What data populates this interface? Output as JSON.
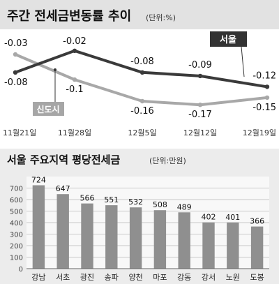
{
  "chart_data": [
    {
      "type": "line",
      "title": "주간 전세금변동률 추이",
      "unit_note": "(단위:%)",
      "categories": [
        "11월21일",
        "11월28일",
        "12월5일",
        "12월12일",
        "12월19일"
      ],
      "series": [
        {
          "name": "서울",
          "values": [
            -0.08,
            -0.02,
            -0.08,
            -0.09,
            -0.12
          ],
          "value_labels": [
            "-0.08",
            "-0.02",
            "-0.08",
            "-0.09",
            "-0.12"
          ],
          "color": "#3a3a3a"
        },
        {
          "name": "신도시",
          "values": [
            -0.03,
            -0.1,
            -0.16,
            -0.17,
            -0.15
          ],
          "value_labels": [
            "-0.03",
            "-0.1",
            "-0.16",
            "-0.17",
            "-0.15"
          ],
          "color": "#a8a8a8"
        }
      ],
      "ylim": [
        -0.19,
        0.0
      ],
      "grid": false,
      "legend": "inline"
    },
    {
      "type": "bar",
      "title": "서울 주요지역 평당전세금",
      "unit_note": "(단위:만원)",
      "categories": [
        "강남",
        "서초",
        "광진",
        "송파",
        "양천",
        "마포",
        "강동",
        "강서",
        "노원",
        "도봉"
      ],
      "values": [
        724,
        647,
        566,
        551,
        532,
        508,
        489,
        402,
        401,
        366
      ],
      "y_ticks": [
        0,
        100,
        200,
        300,
        400,
        500,
        600,
        700
      ],
      "ylim": [
        0,
        800
      ],
      "grid": true
    }
  ],
  "colors": {
    "title_bg": "#e2e2e2",
    "panel_bg": "#ececec",
    "bar": "#8f8f8f",
    "seoul_line": "#3a3a3a",
    "newtown_line": "#a8a8a8"
  }
}
